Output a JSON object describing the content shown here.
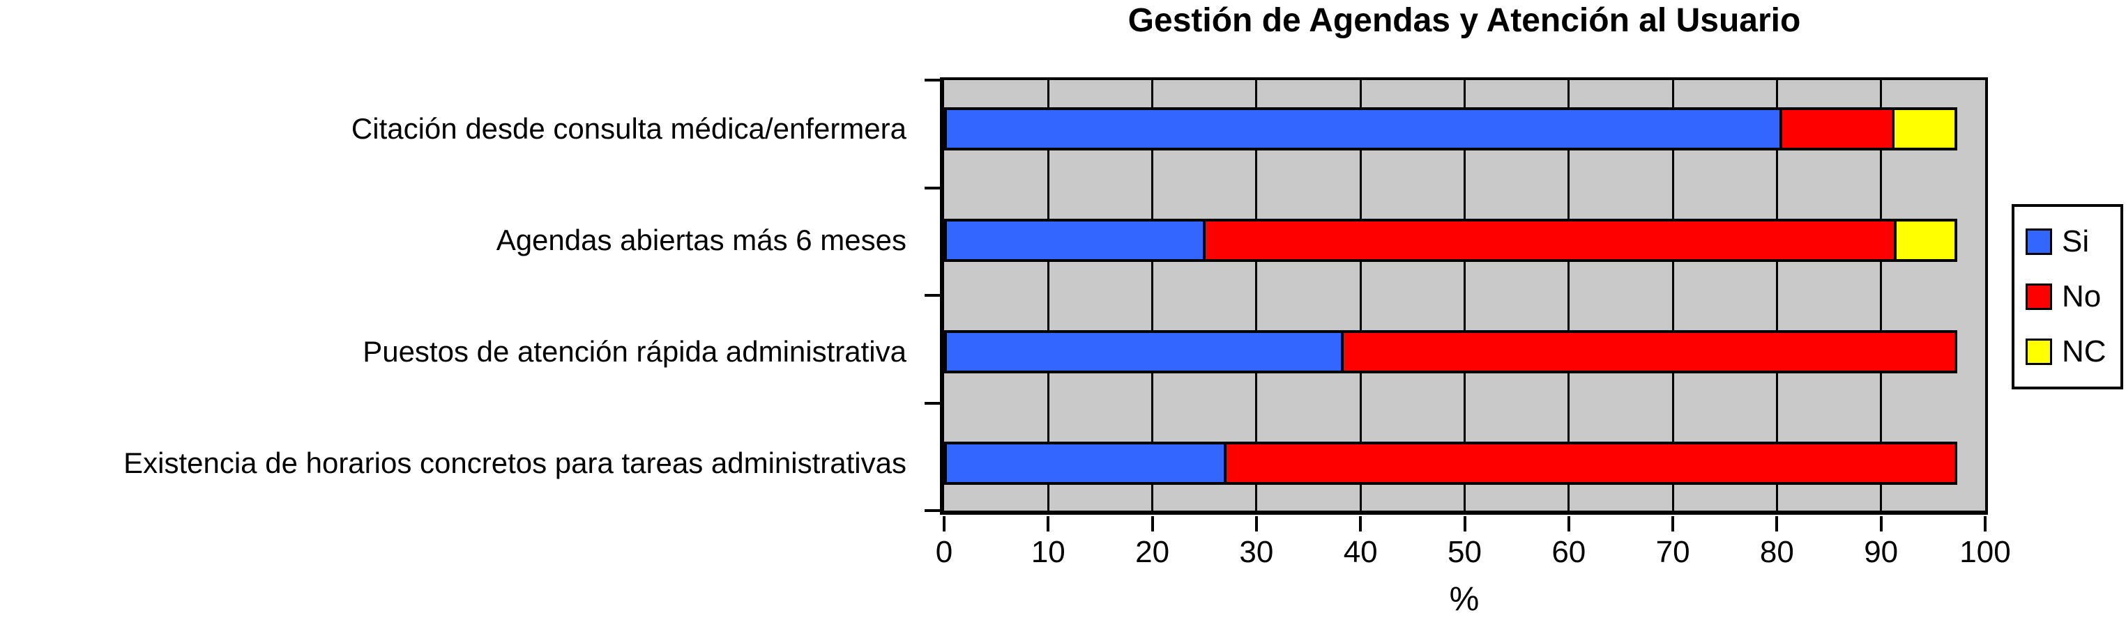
{
  "title": "Gestión de Agendas y Atención al Usuario",
  "chart_data": {
    "type": "bar",
    "orientation": "horizontal",
    "stacked": true,
    "title": "Gestión de Agendas y Atención al Usuario",
    "xlabel": "%",
    "xlim": [
      0,
      100
    ],
    "xticks": [
      0,
      10,
      20,
      30,
      40,
      50,
      60,
      70,
      80,
      90,
      100
    ],
    "grid": "vertical",
    "plot_background": "#c9c9c9",
    "legend_position": "right",
    "categories": [
      "Citación desde consulta médica/enfermera",
      "Agendas abiertas más 6 meses",
      "Puestos de atención rápida administrativa",
      "Existencia de horarios concretos para tareas administrativas"
    ],
    "series": [
      {
        "name": "Si",
        "color": "#3366ff",
        "values": [
          80.5,
          25.1,
          38.4,
          27.1
        ]
      },
      {
        "name": "No",
        "color": "#ff0000",
        "values": [
          10.8,
          66.4,
          58.9,
          70.2
        ]
      },
      {
        "name": "NC",
        "color": "#ffff00",
        "values": [
          6.0,
          5.8,
          0,
          0
        ]
      }
    ]
  },
  "legend": {
    "items": [
      {
        "label": "Si",
        "color": "#3366ff"
      },
      {
        "label": "No",
        "color": "#ff0000"
      },
      {
        "label": "NC",
        "color": "#ffff00"
      }
    ]
  }
}
